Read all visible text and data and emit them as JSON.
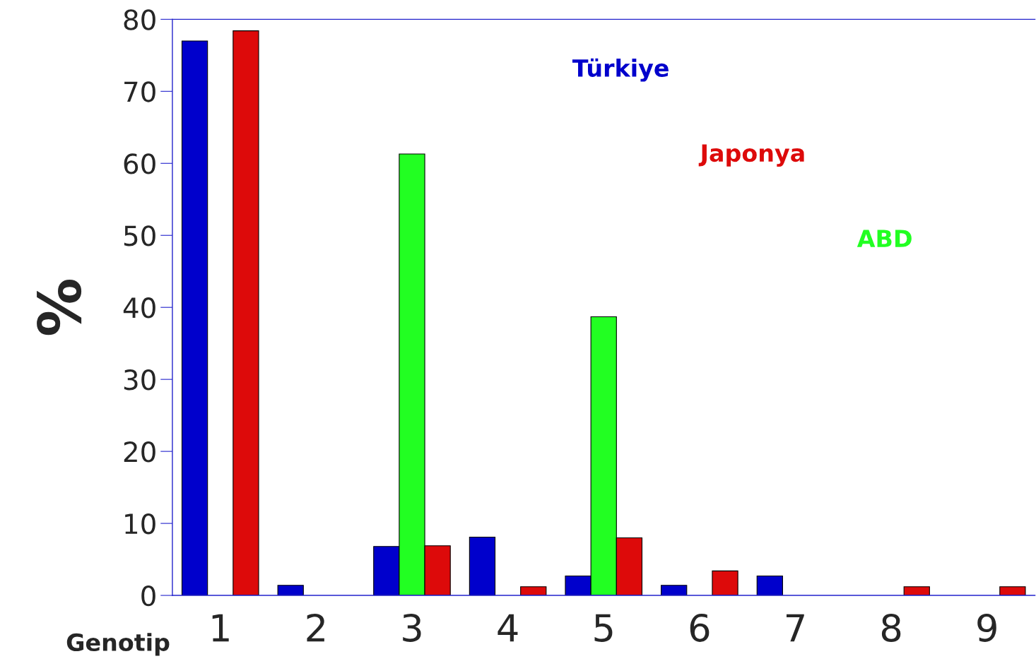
{
  "chart_data": {
    "type": "bar",
    "xlabel": "Genotip",
    "ylabel": "%",
    "categories": [
      "1",
      "2",
      "3",
      "4",
      "5",
      "6",
      "7",
      "8",
      "9"
    ],
    "series": [
      {
        "name": "Türkiye",
        "color": "#0000cc",
        "values": [
          77,
          1.4,
          6.8,
          8.1,
          2.7,
          1.4,
          2.7,
          null,
          null
        ]
      },
      {
        "name": "ABD",
        "color": "#22ff22",
        "values": [
          null,
          null,
          61.3,
          null,
          38.7,
          null,
          null,
          null,
          null
        ]
      },
      {
        "name": "Japonya",
        "color": "#dd0a0a",
        "values": [
          78.4,
          null,
          6.9,
          1.2,
          8,
          3.4,
          null,
          1.2,
          1.2
        ]
      }
    ],
    "ylim": [
      0,
      80
    ],
    "yticks": [
      0,
      10,
      20,
      30,
      40,
      50,
      60,
      70,
      80
    ],
    "grid": false,
    "legend": "top right"
  }
}
